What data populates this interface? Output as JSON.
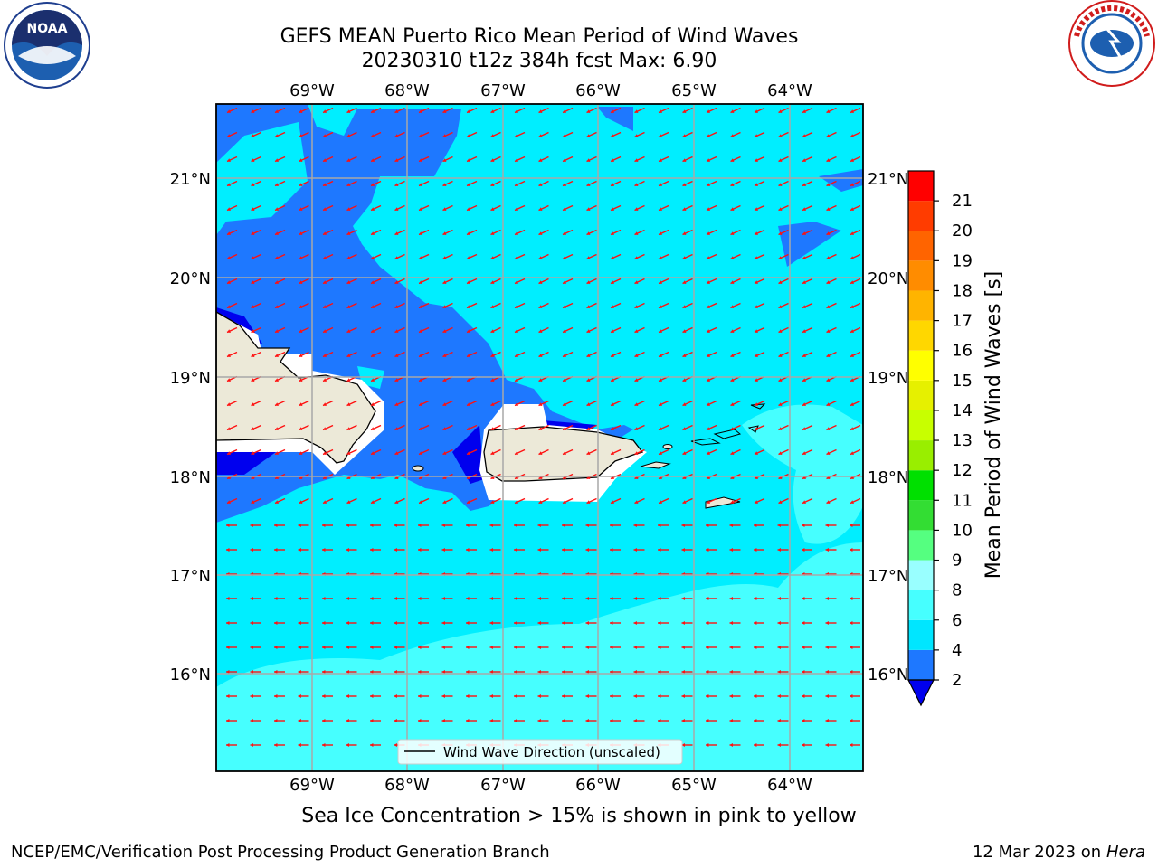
{
  "header": {
    "title_line1": "GEFS MEAN Puerto Rico Mean Period of Wind Waves",
    "title_line2": "20230310 t12z 384h fcst   Max: 6.90"
  },
  "logos": {
    "left": "NOAA",
    "right": "NATIONAL WEATHER SERVICE"
  },
  "map": {
    "lon_labels": [
      "69°W",
      "68°W",
      "67°W",
      "66°W",
      "65°W",
      "64°W"
    ],
    "lat_labels": [
      "21°N",
      "20°N",
      "19°N",
      "18°N",
      "17°N",
      "16°N"
    ],
    "legend_label": "Wind Wave Direction (unscaled)"
  },
  "colorbar": {
    "label": "Mean Period of Wind Waves [s]",
    "ticks": [
      "2",
      "4",
      "6",
      "8",
      "9",
      "10",
      "11",
      "12",
      "13",
      "14",
      "15",
      "16",
      "17",
      "18",
      "19",
      "20",
      "21"
    ],
    "colors": [
      "#0000ee",
      "#1e78ff",
      "#00e6ff",
      "#46ffff",
      "#99ffff",
      "#55ff80",
      "#33dd33",
      "#00e000",
      "#99ee00",
      "#c8ff00",
      "#e6f000",
      "#ffff00",
      "#ffd700",
      "#ffb400",
      "#ff8c00",
      "#ff6400",
      "#ff3c00",
      "#ff0000"
    ]
  },
  "subtitle": "Sea Ice Concentration > 15% is shown in pink to yellow",
  "footer": {
    "left": "NCEP/EMC/Verification Post Processing Product Generation Branch",
    "date": "12 Mar 2023 on",
    "machine": "Hera"
  }
}
